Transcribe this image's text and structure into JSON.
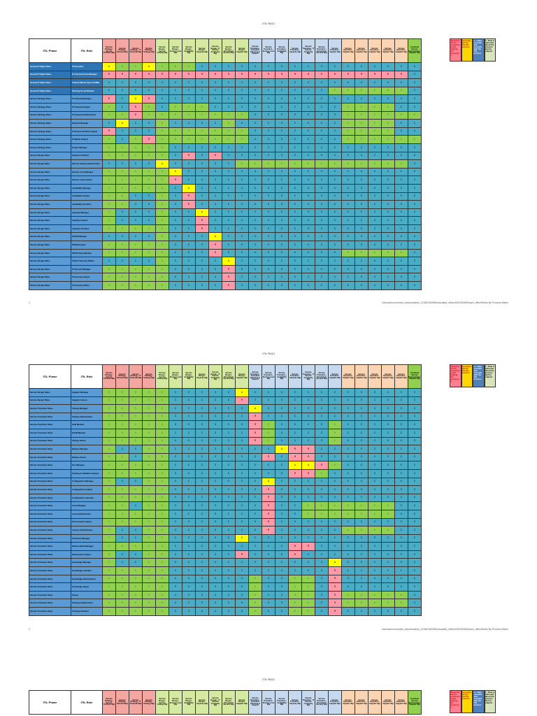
{
  "document": {
    "title": "ITIL RACI",
    "footer_path": "\\\\docucntrconvertsrv_tmp\\sesstmp\\_2\\1567692654\\ciscdata\\_office\\1567692654\\raci\\_office\\Roles By Process Matrix",
    "page_numbers": [
      "1",
      "2"
    ]
  },
  "headers": {
    "phase": "ITIL Phase",
    "role": "ITIL Role",
    "columns": [
      {
        "label": "Service Strategy - Service Portfolio Mgt",
        "group": "strat"
      },
      {
        "label": "Service Strategy - Demand Mgt",
        "group": "strat"
      },
      {
        "label": "Service Strategy - IT Financial Mgt",
        "group": "strat"
      },
      {
        "label": "Service Strategy - Strategy Mgt",
        "group": "strat"
      },
      {
        "label": "Service Design - Service Catalog Mgt",
        "group": "design"
      },
      {
        "label": "Service Design - Service Level Mgt",
        "group": "design"
      },
      {
        "label": "Service Design - Availability Mgt",
        "group": "design"
      },
      {
        "label": "Service Design - Capacity Mgt",
        "group": "design"
      },
      {
        "label": "Service Design - IT Service Continuity Mgt",
        "group": "design"
      },
      {
        "label": "Service Design - Information Security Mgt",
        "group": "design"
      },
      {
        "label": "Service Design - Supplier Mgt",
        "group": "design"
      },
      {
        "label": "Service Transition - Transition Planning & Support",
        "group": "trans"
      },
      {
        "label": "Service Transition - Service Level Mgt",
        "group": "trans"
      },
      {
        "label": "Service Transition - Availability Mgt",
        "group": "trans"
      },
      {
        "label": "Service Transition - Capacity Mgt",
        "group": "trans"
      },
      {
        "label": "Service Transition - IT Service Continuity Mgt",
        "group": "trans"
      },
      {
        "label": "Service Transition - Information Security Mgt",
        "group": "trans"
      },
      {
        "label": "Service Transition - Supplier Mgt",
        "group": "trans"
      },
      {
        "label": "Service Operation - Supplier Mgt",
        "group": "oper"
      },
      {
        "label": "Service Operation - Supplier Mgt",
        "group": "oper"
      },
      {
        "label": "Service Operation - Supplier Mgt",
        "group": "oper"
      },
      {
        "label": "Service Operation - Supplier Mgt",
        "group": "oper"
      },
      {
        "label": "Service Operation - Supplier Mgt",
        "group": "oper"
      },
      {
        "label": "Continual Service Improvement - Supplier Mgt",
        "group": "csi"
      }
    ]
  },
  "legend": [
    {
      "key": "R",
      "text": "Responsible for performing and making the processes"
    },
    {
      "key": "A",
      "text": "Accountable for the ITIL process"
    },
    {
      "key": "C",
      "text": "C = Role consults and consults with the ITIL process"
    },
    {
      "key": "I",
      "text": "I = Role is informed about the process and its outputs"
    }
  ],
  "tables": [
    {
      "rows": [
        {
          "phase": "General IT Mgmt Roles",
          "role": "IT Executive",
          "mgmt": true,
          "cells": "AIIAIIICCCCCCCCCCCCCCCCC"
        },
        {
          "phase": "General IT Mgmt Roles",
          "role": "IT Functional Unit Manager",
          "mgmt": true,
          "cells": "RRRRRRRRRRRRRRRRRRRRRRRC"
        },
        {
          "phase": "General IT Mgmt Roles",
          "role": "Cultural Master Import (CMB)",
          "mgmt": true,
          "cells": "CCCCCCCCCCCCCCCCCCCCCCCC"
        },
        {
          "phase": "General IT Mgmt Roles",
          "role": "Steering Group Member",
          "mgmt": true,
          "cells": "CCCCCCCCCCCCCCCCCIIIIIIC"
        },
        {
          "phase": "Service Strategy Roles",
          "role": "IT Financial Manager",
          "cells": "RCARCCCCCCCCCCCCCCCCCCCC"
        },
        {
          "phase": "Service Strategy Roles",
          "role": "IT Financial Analyst",
          "cells": "ICRICIIICCCCCCCCCCIIIICC"
        },
        {
          "phase": "Service Strategy Roles",
          "role": "IT Financial Administrator",
          "cells": "IIRIIIIIIIICCCCCCCIIIIII"
        },
        {
          "phase": "Service Strategy Roles",
          "role": "Demand Manager",
          "cells": "CACCICCCCICCCCCCCCIIIICC"
        },
        {
          "phase": "Service Strategy Roles",
          "role": "IT Service Portfolio Analyst",
          "cells": "RCCCIIIIIIICCCCCCCIIIICC"
        },
        {
          "phase": "Service Strategy Roles",
          "role": "IT Market Analyst",
          "cells": "ICIRIIIIIIICCCCCCCIIIIII"
        },
        {
          "phase": "Service Strategy Roles",
          "role": "Project Manager",
          "cells": "IIIIICCCCCCCCCCCCCCCCCCC"
        },
        {
          "phase": "Service Design Roles",
          "role": "Solution Architect",
          "cells": "IIIIICRCRCCCCCCCCCCCCCCC"
        },
        {
          "phase": "Service Design Roles",
          "role": "Service Catalog Administrator",
          "cells": "CCCCACCCCCIIIIIIIIIIIIIC"
        },
        {
          "phase": "Service Design Roles",
          "role": "Service Level Manager",
          "cells": "IIIIIACCCCCCCCCCCCCCCCCC"
        },
        {
          "phase": "Service Design Roles",
          "role": "Service Level Analyst",
          "cells": "IIIIIRCCCCCCCCCCCCCCCCCC"
        },
        {
          "phase": "Service Design Roles",
          "role": "Availability Manager",
          "cells": "IIIIICACCCCCCCCCCCCCCCCC"
        },
        {
          "phase": "Service Design Roles",
          "role": "Availability Analyst",
          "cells": "IICCICRCCCCCCCCCCCCCCCCC"
        },
        {
          "phase": "Service Design Roles",
          "role": "Availability Architect",
          "cells": "IICCICRCCCCCCCCCCCCCCCCC"
        },
        {
          "phase": "Service Design Roles",
          "role": "Capacity Manager",
          "cells": "ICCCICCACCCCCCCCCCCCCCCC"
        },
        {
          "phase": "Service Design Roles",
          "role": "Capacity Analyst",
          "cells": "ICCCICCRCCCCCCCCCCCCCCCC"
        },
        {
          "phase": "Service Design Roles",
          "role": "Capacity Architect",
          "cells": "IIIIICCRCCCCCCCCCCCCCCCC"
        },
        {
          "phase": "Service Design Roles",
          "role": "ITSCM Manager",
          "cells": "CCCCICCCACCCCCCCCCCCCCCC"
        },
        {
          "phase": "Service Design Roles",
          "role": "ITSCM Analyst",
          "cells": "IIIIICCCRCCCCCCCCCCCCCCC"
        },
        {
          "phase": "Service Design Roles",
          "role": "ITSCM Team Member",
          "cells": "IIIIICCCRCCCCCCCCCIIIIIC"
        },
        {
          "phase": "Service Design Roles",
          "role": "Chief IT Security Officer",
          "cells": "CCCCICCCCACCCCCCCCCCCCCC"
        },
        {
          "phase": "Service Design Roles",
          "role": "IT Security Manager",
          "cells": "IIIIICCCCRCCCCCCCCCCCCCC"
        },
        {
          "phase": "Service Design Roles",
          "role": "IT Security Analyst",
          "cells": "IIIIICCCCRCCCCCCCCCCCCCC"
        },
        {
          "phase": "Service Design Roles",
          "role": "IT Security Auditor",
          "cells": "IIIIICCCCRCCCCCCCCCCCCCC"
        }
      ]
    },
    {
      "rows": [
        {
          "phase": "Service Design Roles",
          "role": "Supplier Manager",
          "cells": "IIIIICCCCCACCCCCCCCCCCCC"
        },
        {
          "phase": "Service Design Roles",
          "role": "Supplier Liaison",
          "cells": "IIIIICCCCCRCCCCCCCCCCCCC"
        },
        {
          "phase": "Service Transition Roles",
          "role": "Change Manager",
          "cells": "IIIIICCCCCCACCCCCCCCCCCC"
        },
        {
          "phase": "Service Transition Roles",
          "role": "Change Administrator",
          "cells": "IIIIICCCCCCRCCCCCCCCCCCC"
        },
        {
          "phase": "Service Transition Roles",
          "role": "CAB Member",
          "cells": "IIIIICCCCCCRICCCCICCCCCC"
        },
        {
          "phase": "Service Transition Roles",
          "role": "ECAB Member",
          "cells": "IIIIICCCCCCRICCCCICCCCCC"
        },
        {
          "phase": "Service Transition Roles",
          "role": "Change Owner",
          "cells": "IIIIICCCCCCRICCCCICCCCCC"
        },
        {
          "phase": "Service Transition Roles",
          "role": "Release Manager",
          "cells": "ICCIICCCCCCCCARRCCCCCCCC"
        },
        {
          "phase": "Service Transition Roles",
          "role": "Release Owner",
          "cells": "IICIICCCCCCCRCRRCCCCCCCC"
        },
        {
          "phase": "Service Transition Roles",
          "role": "Test Manager",
          "cells": "IIIIICCCCCCCCCAARICCCCCC"
        },
        {
          "phase": "Service Transition Roles",
          "role": "Training & Validation Analyst",
          "cells": "IIIIICCCCCCCCCRRICCCCCCC"
        },
        {
          "phase": "Service Transition Roles",
          "role": "Configuration Manager",
          "cells": "ICCIICCCCCCCACCCCCCCCCCC"
        },
        {
          "phase": "Service Transition Roles",
          "role": "Configuration Analyst",
          "cells": "IIIIICCCCCCCRCCCCCCCCCCC"
        },
        {
          "phase": "Service Transition Roles",
          "role": "Configuration Librarian",
          "cells": "IIIIICCCCCCCRCCCCCCCCCCC"
        },
        {
          "phase": "Service Transition Roles",
          "role": "Asset Manager",
          "cells": "IICIICCCCCCCRCCIIIIIIICC"
        },
        {
          "phase": "Service Transition Roles",
          "role": "Asset Administrator",
          "cells": "IIIIICCCCCCCRCCIIIIIIICC"
        },
        {
          "phase": "Service Transition Roles",
          "role": "Procurement Analyst",
          "cells": "IIIIICCCCCCCRCCCCCCCCCCC"
        },
        {
          "phase": "Service Transition Roles",
          "role": "License Administrator",
          "cells": "ICCIICCCCCCCRCCCCCIIIICC"
        },
        {
          "phase": "Service Transition Roles",
          "role": "Transition Manager",
          "cells": "ICCIICCCCCACCCCCCCCCCCCC"
        },
        {
          "phase": "Service Transition Roles",
          "role": "Release Build Manager",
          "cells": "IIIIICCCCCCCCCRRCCCCCCCC"
        },
        {
          "phase": "Service Transition Roles",
          "role": "Deployment Analyst",
          "cells": "ICCIICCCCCRCCCRCCCCCCCCC"
        },
        {
          "phase": "Service Transition Roles",
          "role": "Knowledge Manager",
          "cells": "ICCIICCCCCCCCCCCCACCCCCC"
        },
        {
          "phase": "Service Transition Roles",
          "role": "Knowledge Architect",
          "cells": "IIIIICCCCCCCCCCCCRCCCCCC"
        },
        {
          "phase": "Service Transition Roles",
          "role": "Knowledge Administrator",
          "cells": "IIIIICCCCCCICCIICRCCCCCC"
        },
        {
          "phase": "Service Transition Roles",
          "role": "Knowledge Owner",
          "cells": "IIIIICCCCCCICCIICRCCCCCC"
        },
        {
          "phase": "Service Transition Roles",
          "role": "Trainer",
          "cells": "IIIIICCCCCCICCIICRIIIIIC"
        },
        {
          "phase": "Service Transition Roles",
          "role": "Training Administrator",
          "cells": "IIIIICCCCCCICCIICRIIIIIC"
        },
        {
          "phase": "Service Transition Roles",
          "role": "Training Architect",
          "cells": "IIIIICCCCCCICCIICRCCCCCC"
        }
      ]
    }
  ]
}
